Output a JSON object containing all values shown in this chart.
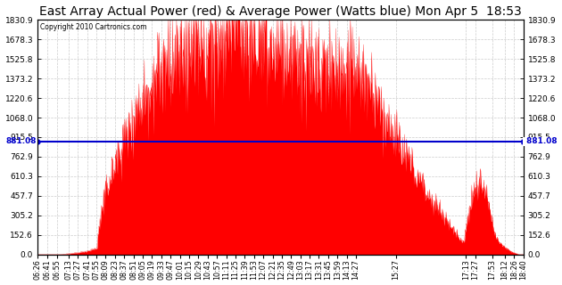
{
  "title": "East Array Actual Power (red) & Average Power (Watts blue) Mon Apr 5  18:53",
  "copyright": "Copyright 2010 Cartronics.com",
  "avg_power": 881.08,
  "ymax": 1830.9,
  "ymin": 0.0,
  "yticks": [
    0.0,
    152.6,
    305.2,
    457.7,
    610.3,
    762.9,
    915.5,
    1068.0,
    1220.6,
    1373.2,
    1525.8,
    1678.3,
    1830.9
  ],
  "bar_color": "#FF0000",
  "line_color": "#0000CC",
  "bg_color": "#FFFFFF",
  "grid_color": "#CCCCCC",
  "title_fontsize": 10,
  "x_labels": [
    "06:26",
    "06:41",
    "06:55",
    "07:13",
    "07:27",
    "07:41",
    "07:55",
    "08:09",
    "08:23",
    "08:37",
    "08:51",
    "09:05",
    "09:19",
    "09:33",
    "09:47",
    "10:01",
    "10:15",
    "10:29",
    "10:43",
    "10:57",
    "11:11",
    "11:25",
    "11:39",
    "11:53",
    "12:07",
    "12:21",
    "12:35",
    "12:49",
    "13:03",
    "13:17",
    "13:31",
    "13:45",
    "13:59",
    "14:13",
    "14:27",
    "15:27",
    "17:13",
    "17:27",
    "17:53",
    "18:12",
    "18:26",
    "18:40"
  ]
}
